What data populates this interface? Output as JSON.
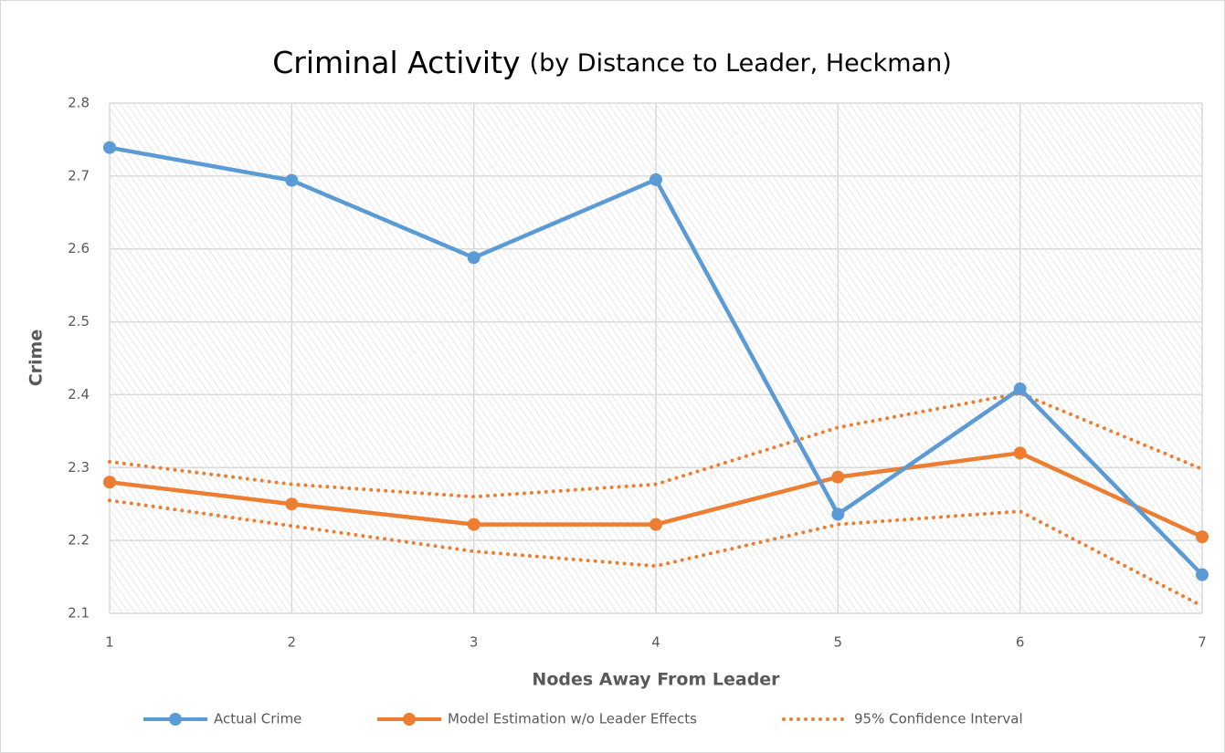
{
  "chart_data": {
    "type": "line",
    "title": "Criminal Activity",
    "subtitle": "(by Distance to Leader, Heckman)",
    "x_label": "Nodes Away From Leader",
    "y_label": "Crime",
    "x": [
      1,
      2,
      3,
      4,
      5,
      6,
      7
    ],
    "xlim": [
      1,
      7
    ],
    "xticks": [
      1,
      2,
      3,
      4,
      5,
      6,
      7
    ],
    "ylim": [
      2.1,
      2.8
    ],
    "yticks": [
      2.1,
      2.2,
      2.3,
      2.4,
      2.5,
      2.6,
      2.7,
      2.8
    ],
    "grid": true,
    "legend": "bottom",
    "series": [
      {
        "name": "Actual Crime",
        "color": "#5b9bd5",
        "markers": true,
        "values": [
          2.739,
          2.694,
          2.588,
          2.695,
          2.236,
          2.408,
          2.153
        ]
      },
      {
        "name": "Model Estimation w/o Leader Effects",
        "color": "#ed7d31",
        "markers": true,
        "values": [
          2.28,
          2.25,
          2.222,
          2.222,
          2.287,
          2.32,
          2.205
        ]
      },
      {
        "name": "95% Confidence Interval",
        "color": "#ed7d31",
        "dash": "dotted",
        "upper": [
          2.308,
          2.277,
          2.26,
          2.277,
          2.355,
          2.402,
          2.298
        ],
        "lower": [
          2.255,
          2.22,
          2.185,
          2.165,
          2.222,
          2.24,
          2.11
        ]
      }
    ]
  }
}
